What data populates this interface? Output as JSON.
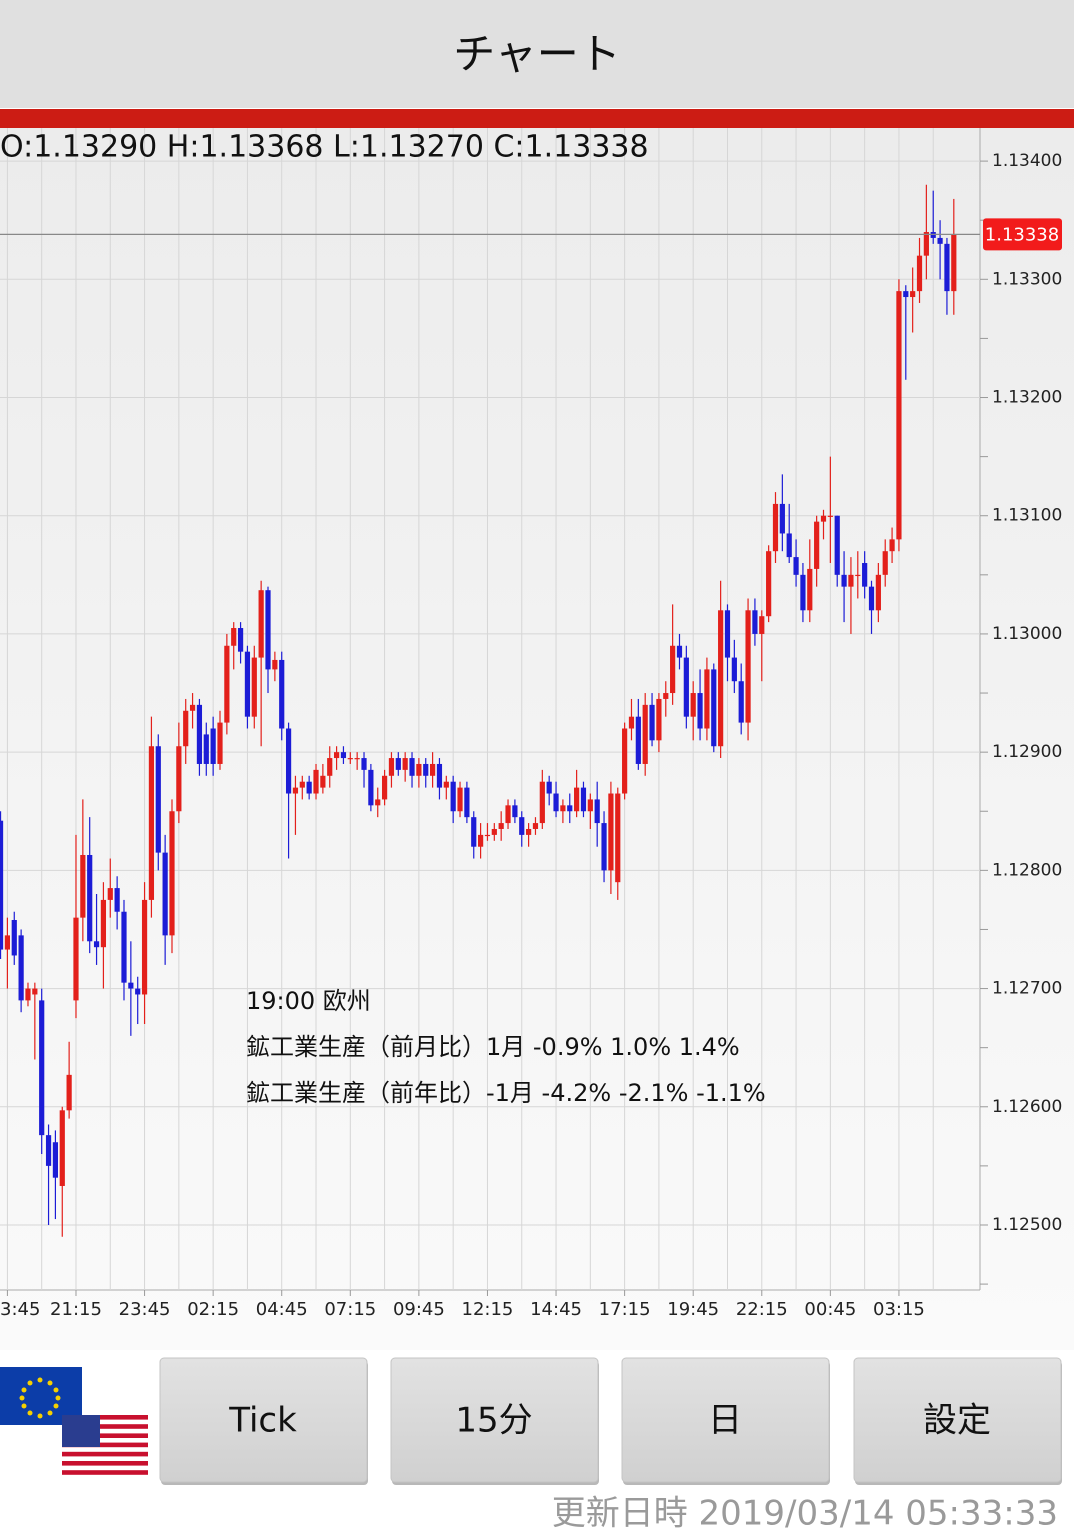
{
  "header": {
    "title": "チャート"
  },
  "chart_data": {
    "type": "candlestick",
    "ohlc_text": "O:1.13290 H:1.13368 L:1.13270 C:1.13338",
    "annotation": [
      "19:00 欧州",
      "鉱工業生産（前月比）1月 -0.9% 1.0% 1.4%",
      "鉱工業生産（前年比）-1月 -4.2% -2.1% -1.1%"
    ],
    "up_color": "#e3201b",
    "down_color": "#1c1cd6",
    "last_price": 1.13338,
    "last_price_label": "1.13338",
    "xlim": [
      -0.08,
      142.82
    ],
    "xticks": [
      {
        "value": 1,
        "label": "3:45"
      },
      {
        "value": 11,
        "label": "21:15"
      },
      {
        "value": 21,
        "label": "23:45"
      },
      {
        "value": 31,
        "label": "02:15"
      },
      {
        "value": 41,
        "label": "04:45"
      },
      {
        "value": 51,
        "label": "07:15"
      },
      {
        "value": 61,
        "label": "09:45"
      },
      {
        "value": 71,
        "label": "12:15"
      },
      {
        "value": 81,
        "label": "14:45"
      },
      {
        "value": 91,
        "label": "17:15"
      },
      {
        "value": 101,
        "label": "19:45"
      },
      {
        "value": 111,
        "label": "22:15"
      },
      {
        "value": 121,
        "label": "00:45"
      },
      {
        "value": 131,
        "label": "03:15"
      }
    ],
    "x_minor_ticks": [
      6,
      16,
      26,
      36,
      46,
      56,
      66,
      76,
      86,
      96,
      106,
      116,
      126,
      136
    ],
    "ylim": [
      1.12445,
      1.13428
    ],
    "yticks": [
      {
        "value": 1.125,
        "label": "1.12500"
      },
      {
        "value": 1.126,
        "label": "1.12600"
      },
      {
        "value": 1.127,
        "label": "1.12700"
      },
      {
        "value": 1.128,
        "label": "1.12800"
      },
      {
        "value": 1.129,
        "label": "1.12900"
      },
      {
        "value": 1.13,
        "label": "1.13000"
      },
      {
        "value": 1.131,
        "label": "1.13100"
      },
      {
        "value": 1.132,
        "label": "1.13200"
      },
      {
        "value": 1.133,
        "label": "1.13300"
      },
      {
        "value": 1.134,
        "label": "1.13400"
      }
    ],
    "y_minor_ticks": [
      1.1245,
      1.1255,
      1.1265,
      1.1275,
      1.1285,
      1.1295,
      1.1305,
      1.1315,
      1.1325,
      1.1335
    ],
    "grid": true,
    "candles": [
      [
        1.12842,
        1.1285,
        1.12725,
        1.12733
      ],
      [
        1.12733,
        1.1276,
        1.127,
        1.12745
      ],
      [
        1.12758,
        1.12765,
        1.1272,
        1.12728
      ],
      [
        1.12745,
        1.1275,
        1.1268,
        1.1269
      ],
      [
        1.1269,
        1.12705,
        1.12685,
        1.127
      ],
      [
        1.12695,
        1.12705,
        1.1264,
        1.127
      ],
      [
        1.1269,
        1.127,
        1.1256,
        1.12576
      ],
      [
        1.12576,
        1.12585,
        1.125,
        1.1255
      ],
      [
        1.1257,
        1.1258,
        1.12505,
        1.1254
      ],
      [
        1.12533,
        1.126,
        1.1249,
        1.12597
      ],
      [
        1.12597,
        1.12655,
        1.1259,
        1.12627
      ],
      [
        1.1269,
        1.1283,
        1.12675,
        1.1276
      ],
      [
        1.1276,
        1.1286,
        1.1274,
        1.12813
      ],
      [
        1.12813,
        1.12845,
        1.1273,
        1.1274
      ],
      [
        1.1274,
        1.1278,
        1.1272,
        1.12735
      ],
      [
        1.12735,
        1.1279,
        1.127,
        1.12775
      ],
      [
        1.12775,
        1.1281,
        1.1276,
        1.12785
      ],
      [
        1.12785,
        1.12795,
        1.1275,
        1.12765
      ],
      [
        1.12765,
        1.12775,
        1.1269,
        1.12705
      ],
      [
        1.12705,
        1.1274,
        1.1266,
        1.127
      ],
      [
        1.127,
        1.1271,
        1.1267,
        1.12695
      ],
      [
        1.12695,
        1.1279,
        1.1267,
        1.12775
      ],
      [
        1.12775,
        1.1293,
        1.1276,
        1.12905
      ],
      [
        1.12905,
        1.12915,
        1.128,
        1.12815
      ],
      [
        1.12815,
        1.1283,
        1.1272,
        1.12745
      ],
      [
        1.12745,
        1.1286,
        1.1273,
        1.1285
      ],
      [
        1.1285,
        1.12925,
        1.1284,
        1.12905
      ],
      [
        1.12905,
        1.12945,
        1.1289,
        1.12935
      ],
      [
        1.12935,
        1.1295,
        1.1292,
        1.1294
      ],
      [
        1.1294,
        1.12945,
        1.1288,
        1.1289
      ],
      [
        1.12915,
        1.12925,
        1.1288,
        1.1289
      ],
      [
        1.1292,
        1.1293,
        1.1288,
        1.1289
      ],
      [
        1.1289,
        1.12935,
        1.12885,
        1.12925
      ],
      [
        1.12925,
        1.13,
        1.12915,
        1.1299
      ],
      [
        1.1299,
        1.1301,
        1.1297,
        1.13005
      ],
      [
        1.13005,
        1.1301,
        1.12975,
        1.12985
      ],
      [
        1.12985,
        1.1299,
        1.1292,
        1.1293
      ],
      [
        1.1293,
        1.1299,
        1.1292,
        1.1298
      ],
      [
        1.1298,
        1.13045,
        1.12905,
        1.13037
      ],
      [
        1.13037,
        1.1304,
        1.1295,
        1.1297
      ],
      [
        1.1297,
        1.12985,
        1.1296,
        1.12978
      ],
      [
        1.12978,
        1.12985,
        1.1291,
        1.1292
      ],
      [
        1.1292,
        1.12925,
        1.1281,
        1.12865
      ],
      [
        1.12865,
        1.1288,
        1.1283,
        1.1287
      ],
      [
        1.1287,
        1.1288,
        1.1286,
        1.12875
      ],
      [
        1.12875,
        1.1288,
        1.1286,
        1.12865
      ],
      [
        1.12865,
        1.1289,
        1.1286,
        1.12885
      ],
      [
        1.1287,
        1.1289,
        1.12865,
        1.1288
      ],
      [
        1.1288,
        1.12905,
        1.1287,
        1.12895
      ],
      [
        1.12895,
        1.12905,
        1.12885,
        1.129
      ],
      [
        1.129,
        1.12905,
        1.1289,
        1.12895
      ],
      [
        1.12895,
        1.129,
        1.1289,
        1.12895
      ],
      [
        1.12895,
        1.129,
        1.12885,
        1.12895
      ],
      [
        1.12895,
        1.129,
        1.1287,
        1.12885
      ],
      [
        1.12885,
        1.1289,
        1.1285,
        1.12855
      ],
      [
        1.12855,
        1.1287,
        1.12845,
        1.1286
      ],
      [
        1.1286,
        1.12885,
        1.12855,
        1.1288
      ],
      [
        1.1288,
        1.129,
        1.1287,
        1.12895
      ],
      [
        1.12895,
        1.129,
        1.1288,
        1.12885
      ],
      [
        1.12885,
        1.129,
        1.12875,
        1.12895
      ],
      [
        1.12895,
        1.129,
        1.1287,
        1.1288
      ],
      [
        1.1288,
        1.12895,
        1.1287,
        1.1289
      ],
      [
        1.1289,
        1.12895,
        1.1287,
        1.1288
      ],
      [
        1.1288,
        1.129,
        1.1287,
        1.1289
      ],
      [
        1.1289,
        1.12895,
        1.1286,
        1.1287
      ],
      [
        1.1287,
        1.1288,
        1.1286,
        1.12875
      ],
      [
        1.12875,
        1.1288,
        1.1284,
        1.1285
      ],
      [
        1.1285,
        1.12875,
        1.12845,
        1.1287
      ],
      [
        1.1287,
        1.12875,
        1.1284,
        1.12845
      ],
      [
        1.12845,
        1.1285,
        1.1281,
        1.1282
      ],
      [
        1.1282,
        1.1284,
        1.1281,
        1.1283
      ],
      [
        1.1283,
        1.1284,
        1.12825,
        1.1283
      ],
      [
        1.1283,
        1.1284,
        1.12825,
        1.12835
      ],
      [
        1.12835,
        1.1285,
        1.12825,
        1.1284
      ],
      [
        1.1284,
        1.1286,
        1.12835,
        1.12855
      ],
      [
        1.12855,
        1.1286,
        1.1284,
        1.12845
      ],
      [
        1.12845,
        1.1285,
        1.1282,
        1.1283
      ],
      [
        1.1283,
        1.1284,
        1.1282,
        1.12835
      ],
      [
        1.12835,
        1.12845,
        1.1283,
        1.1284
      ],
      [
        1.1284,
        1.12885,
        1.12835,
        1.12875
      ],
      [
        1.12875,
        1.1288,
        1.12855,
        1.12865
      ],
      [
        1.12865,
        1.12875,
        1.12845,
        1.1285
      ],
      [
        1.1285,
        1.1286,
        1.1284,
        1.12855
      ],
      [
        1.12855,
        1.12865,
        1.1284,
        1.1285
      ],
      [
        1.1285,
        1.12885,
        1.12845,
        1.1287
      ],
      [
        1.1287,
        1.12875,
        1.12845,
        1.1285
      ],
      [
        1.1285,
        1.12865,
        1.12835,
        1.1286
      ],
      [
        1.1286,
        1.12875,
        1.1282,
        1.1284
      ],
      [
        1.1284,
        1.1285,
        1.1279,
        1.128
      ],
      [
        1.128,
        1.12875,
        1.1278,
        1.12865
      ],
      [
        1.1279,
        1.1287,
        1.12775,
        1.12865
      ],
      [
        1.12865,
        1.12925,
        1.1286,
        1.1292
      ],
      [
        1.1292,
        1.12945,
        1.1291,
        1.1293
      ],
      [
        1.1293,
        1.12945,
        1.12885,
        1.1289
      ],
      [
        1.1289,
        1.1295,
        1.1288,
        1.1294
      ],
      [
        1.1294,
        1.1295,
        1.12905,
        1.1291
      ],
      [
        1.1291,
        1.1295,
        1.129,
        1.12945
      ],
      [
        1.12945,
        1.1296,
        1.1293,
        1.1295
      ],
      [
        1.1295,
        1.13025,
        1.1294,
        1.1299
      ],
      [
        1.1299,
        1.13,
        1.1297,
        1.1298
      ],
      [
        1.1298,
        1.1299,
        1.1292,
        1.1293
      ],
      [
        1.1293,
        1.1296,
        1.1291,
        1.1295
      ],
      [
        1.1295,
        1.1297,
        1.1291,
        1.1292
      ],
      [
        1.1292,
        1.1298,
        1.1291,
        1.1297
      ],
      [
        1.1297,
        1.12975,
        1.129,
        1.12905
      ],
      [
        1.12905,
        1.13045,
        1.12895,
        1.1302
      ],
      [
        1.1302,
        1.13025,
        1.1296,
        1.1298
      ],
      [
        1.1298,
        1.12995,
        1.1295,
        1.1296
      ],
      [
        1.1296,
        1.12975,
        1.12915,
        1.12925
      ],
      [
        1.12925,
        1.1303,
        1.1291,
        1.1302
      ],
      [
        1.1302,
        1.1303,
        1.1299,
        1.13
      ],
      [
        1.13,
        1.1302,
        1.1296,
        1.13015
      ],
      [
        1.13015,
        1.13075,
        1.1301,
        1.1307
      ],
      [
        1.1307,
        1.1312,
        1.1306,
        1.1311
      ],
      [
        1.1311,
        1.13135,
        1.1307,
        1.13085
      ],
      [
        1.13085,
        1.1311,
        1.1306,
        1.13065
      ],
      [
        1.13065,
        1.1308,
        1.1304,
        1.1305
      ],
      [
        1.1305,
        1.1306,
        1.1301,
        1.1302
      ],
      [
        1.1302,
        1.1308,
        1.1301,
        1.13055
      ],
      [
        1.13055,
        1.131,
        1.1304,
        1.13095
      ],
      [
        1.13095,
        1.13105,
        1.1308,
        1.131
      ],
      [
        1.131,
        1.1315,
        1.1306,
        1.131
      ],
      [
        1.131,
        1.131,
        1.1304,
        1.1305
      ],
      [
        1.1305,
        1.1307,
        1.1301,
        1.1304
      ],
      [
        1.1304,
        1.13065,
        1.13,
        1.1305
      ],
      [
        1.1305,
        1.1307,
        1.1303,
        1.1305
      ],
      [
        1.1306,
        1.1307,
        1.1303,
        1.1304
      ],
      [
        1.1304,
        1.13045,
        1.13,
        1.1302
      ],
      [
        1.1302,
        1.1306,
        1.1301,
        1.1305
      ],
      [
        1.1305,
        1.1308,
        1.1304,
        1.1307
      ],
      [
        1.1307,
        1.1309,
        1.1306,
        1.1308
      ],
      [
        1.1308,
        1.133,
        1.1307,
        1.1329
      ],
      [
        1.1329,
        1.13295,
        1.13215,
        1.13285
      ],
      [
        1.13285,
        1.1331,
        1.13255,
        1.1329
      ],
      [
        1.1329,
        1.13335,
        1.1328,
        1.1332
      ],
      [
        1.1332,
        1.1338,
        1.133,
        1.1334
      ],
      [
        1.1334,
        1.13375,
        1.1333,
        1.13335
      ],
      [
        1.13335,
        1.1335,
        1.133,
        1.1333
      ],
      [
        1.1333,
        1.13335,
        1.1327,
        1.1329
      ],
      [
        1.1329,
        1.13368,
        1.1327,
        1.13338
      ]
    ]
  },
  "buttons": [
    "Tick",
    "15分",
    "日",
    "設定"
  ],
  "footer": {
    "updated": "更新日時 2019/03/14 05:33:33"
  }
}
